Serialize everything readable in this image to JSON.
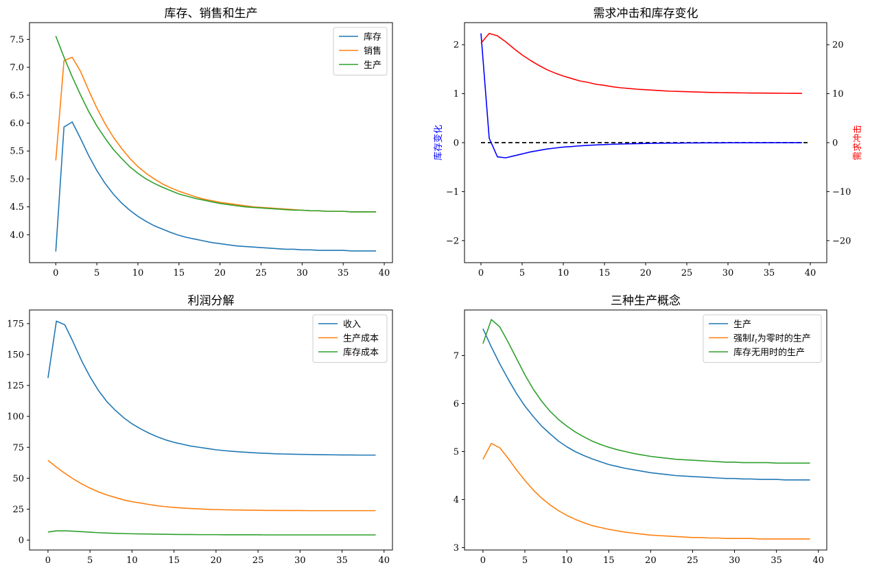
{
  "chart_data": [
    {
      "type": "line",
      "title": "库存、销售和生产",
      "xlabel": "",
      "ylabel": "",
      "x": [
        0,
        1,
        2,
        3,
        4,
        5,
        6,
        7,
        8,
        9,
        10,
        11,
        12,
        13,
        14,
        15,
        16,
        17,
        18,
        19,
        20,
        21,
        22,
        23,
        24,
        25,
        26,
        27,
        28,
        29,
        30,
        31,
        32,
        33,
        34,
        35,
        36,
        37,
        38,
        39
      ],
      "xlim": [
        -3.2,
        41
      ],
      "ylim": [
        3.5,
        7.8
      ],
      "xticks": [
        0,
        5,
        10,
        15,
        20,
        25,
        30,
        35,
        40
      ],
      "yticks": [
        4.0,
        4.5,
        5.0,
        5.5,
        6.0,
        6.5,
        7.0,
        7.5
      ],
      "ytick_labels": [
        "4.0",
        "4.5",
        "5.0",
        "5.5",
        "6.0",
        "6.5",
        "7.0",
        "7.5"
      ],
      "legend_position": "upper-right",
      "series": [
        {
          "name": "库存",
          "color": "#1f77b4",
          "values": [
            3.7,
            5.93,
            6.02,
            5.73,
            5.42,
            5.15,
            4.92,
            4.73,
            4.57,
            4.44,
            4.33,
            4.24,
            4.16,
            4.1,
            4.04,
            3.99,
            3.95,
            3.92,
            3.89,
            3.86,
            3.84,
            3.82,
            3.8,
            3.79,
            3.78,
            3.77,
            3.76,
            3.75,
            3.74,
            3.74,
            3.73,
            3.73,
            3.72,
            3.72,
            3.72,
            3.72,
            3.71,
            3.71,
            3.71,
            3.71
          ]
        },
        {
          "name": "销售",
          "color": "#ff7f0e",
          "values": [
            5.33,
            7.12,
            7.18,
            6.93,
            6.59,
            6.27,
            5.99,
            5.75,
            5.55,
            5.37,
            5.22,
            5.1,
            5,
            4.91,
            4.84,
            4.78,
            4.73,
            4.68,
            4.64,
            4.61,
            4.58,
            4.56,
            4.54,
            4.52,
            4.5,
            4.49,
            4.48,
            4.47,
            4.46,
            4.45,
            4.44,
            4.43,
            4.43,
            4.42,
            4.42,
            4.42,
            4.41,
            4.41,
            4.41,
            4.41
          ]
        },
        {
          "name": "生产",
          "color": "#2ca02c",
          "values": [
            7.56,
            7.18,
            6.83,
            6.51,
            6.21,
            5.95,
            5.73,
            5.53,
            5.37,
            5.22,
            5.1,
            5,
            4.92,
            4.85,
            4.79,
            4.73,
            4.69,
            4.65,
            4.62,
            4.59,
            4.56,
            4.54,
            4.52,
            4.5,
            4.49,
            4.48,
            4.47,
            4.46,
            4.45,
            4.44,
            4.44,
            4.43,
            4.43,
            4.42,
            4.42,
            4.42,
            4.41,
            4.41,
            4.41,
            4.41
          ]
        }
      ]
    },
    {
      "type": "line",
      "title": "需求冲击和库存变化",
      "xlabel": "",
      "ylabel": "库存变化",
      "ylabel_right": "需求冲击",
      "ylabel_color": "#0000ff",
      "ylabel_right_color": "#ff0000",
      "x": [
        0,
        1,
        2,
        3,
        4,
        5,
        6,
        7,
        8,
        9,
        10,
        11,
        12,
        13,
        14,
        15,
        16,
        17,
        18,
        19,
        20,
        21,
        22,
        23,
        24,
        25,
        26,
        27,
        28,
        29,
        30,
        31,
        32,
        33,
        34,
        35,
        36,
        37,
        38,
        39
      ],
      "xlim": [
        -2,
        42
      ],
      "ylim": [
        -2.45,
        2.45
      ],
      "ylim_right": [
        -24.5,
        24.5
      ],
      "xticks": [
        0,
        5,
        10,
        15,
        20,
        25,
        30,
        35,
        40
      ],
      "yticks": [
        -2,
        -1,
        0,
        1,
        2
      ],
      "ytick_labels": [
        "−2",
        "−1",
        "0",
        "1",
        "2"
      ],
      "yticks_right": [
        -20,
        -10,
        0,
        10,
        20
      ],
      "ytick_labels_right": [
        "−20",
        "−10",
        "0",
        "10",
        "20"
      ],
      "reference_line": {
        "y": 0,
        "style": "dashed",
        "color": "#000000",
        "x_range": [
          0,
          40
        ]
      },
      "series": [
        {
          "axis": "left",
          "color": "#0000ff",
          "values": [
            2.23,
            0.09,
            -0.29,
            -0.31,
            -0.27,
            -0.23,
            -0.19,
            -0.16,
            -0.13,
            -0.11,
            -0.09,
            -0.08,
            -0.065,
            -0.055,
            -0.046,
            -0.039,
            -0.033,
            -0.028,
            -0.024,
            -0.02,
            -0.017,
            -0.014,
            -0.012,
            -0.01,
            -0.009,
            -0.007,
            -0.006,
            -0.005,
            -0.004,
            -0.004,
            -0.003,
            -0.003,
            -0.002,
            -0.002,
            -0.002,
            -0.001,
            -0.001,
            -0.001,
            -0.001,
            -0.001
          ]
        },
        {
          "axis": "right",
          "color": "#ff0000",
          "values": [
            20.3,
            22.3,
            21.8,
            20.6,
            19.2,
            17.9,
            16.8,
            15.8,
            14.9,
            14.2,
            13.6,
            13.1,
            12.6,
            12.3,
            11.9,
            11.7,
            11.4,
            11.2,
            11.05,
            10.9,
            10.8,
            10.7,
            10.6,
            10.5,
            10.45,
            10.4,
            10.35,
            10.3,
            10.25,
            10.22,
            10.2,
            10.17,
            10.15,
            10.13,
            10.12,
            10.1,
            10.09,
            10.08,
            10.07,
            10.06
          ]
        }
      ]
    },
    {
      "type": "line",
      "title": "利润分解",
      "xlabel": "",
      "ylabel": "",
      "x": [
        0,
        1,
        2,
        3,
        4,
        5,
        6,
        7,
        8,
        9,
        10,
        11,
        12,
        13,
        14,
        15,
        16,
        17,
        18,
        19,
        20,
        21,
        22,
        23,
        24,
        25,
        26,
        27,
        28,
        29,
        30,
        31,
        32,
        33,
        34,
        35,
        36,
        37,
        38,
        39
      ],
      "xlim": [
        -2.2,
        41
      ],
      "ylim": [
        -8,
        186
      ],
      "xticks": [
        0,
        5,
        10,
        15,
        20,
        25,
        30,
        35,
        40
      ],
      "yticks": [
        0,
        25,
        50,
        75,
        100,
        125,
        150,
        175
      ],
      "ytick_labels": [
        "0",
        "25",
        "50",
        "75",
        "100",
        "125",
        "150",
        "175"
      ],
      "legend_position": "upper-right",
      "series": [
        {
          "name": "收入",
          "color": "#1f77b4",
          "values": [
            131,
            177,
            174,
            160,
            145,
            132,
            121,
            112,
            105,
            99,
            94,
            90,
            86.5,
            83.5,
            81,
            79,
            77.5,
            76,
            75,
            74,
            73,
            72.3,
            71.7,
            71.2,
            70.8,
            70.4,
            70.1,
            69.8,
            69.6,
            69.4,
            69.3,
            69.2,
            69.1,
            69,
            68.9,
            68.8,
            68.8,
            68.7,
            68.7,
            68.7
          ]
        },
        {
          "name": "生产成本",
          "color": "#ff7f0e",
          "values": [
            64.5,
            59,
            54,
            49.5,
            45.5,
            42,
            39,
            36.5,
            34.5,
            32.5,
            31,
            30,
            28.8,
            27.8,
            27,
            26.4,
            25.9,
            25.5,
            25.2,
            24.9,
            24.7,
            24.5,
            24.4,
            24.3,
            24.2,
            24.1,
            24,
            24,
            23.9,
            23.9,
            23.9,
            23.8,
            23.8,
            23.8,
            23.8,
            23.8,
            23.8,
            23.8,
            23.8,
            23.8
          ]
        },
        {
          "name": "库存成本",
          "color": "#2ca02c",
          "values": [
            6.5,
            7.5,
            7.5,
            7.2,
            6.8,
            6.4,
            6,
            5.7,
            5.5,
            5.3,
            5.1,
            5,
            4.9,
            4.8,
            4.7,
            4.6,
            4.5,
            4.5,
            4.4,
            4.4,
            4.4,
            4.3,
            4.3,
            4.3,
            4.3,
            4.3,
            4.2,
            4.2,
            4.2,
            4.2,
            4.2,
            4.2,
            4.2,
            4.2,
            4.2,
            4.2,
            4.2,
            4.2,
            4.2,
            4.2
          ]
        }
      ]
    },
    {
      "type": "line",
      "title": "三种生产概念",
      "xlabel": "",
      "ylabel": "",
      "x": [
        0,
        1,
        2,
        3,
        4,
        5,
        6,
        7,
        8,
        9,
        10,
        11,
        12,
        13,
        14,
        15,
        16,
        17,
        18,
        19,
        20,
        21,
        22,
        23,
        24,
        25,
        26,
        27,
        28,
        29,
        30,
        31,
        32,
        33,
        34,
        35,
        36,
        37,
        38,
        39
      ],
      "xlim": [
        -2.2,
        41
      ],
      "ylim": [
        2.95,
        7.95
      ],
      "xticks": [
        0,
        5,
        10,
        15,
        20,
        25,
        30,
        35,
        40
      ],
      "yticks": [
        3,
        4,
        5,
        6,
        7
      ],
      "ytick_labels": [
        "3",
        "4",
        "5",
        "6",
        "7"
      ],
      "legend_position": "upper-right",
      "series": [
        {
          "name": "生产",
          "color": "#1f77b4",
          "values": [
            7.56,
            7.18,
            6.83,
            6.51,
            6.21,
            5.95,
            5.73,
            5.53,
            5.37,
            5.22,
            5.1,
            5,
            4.92,
            4.85,
            4.79,
            4.73,
            4.69,
            4.65,
            4.62,
            4.59,
            4.56,
            4.54,
            4.52,
            4.5,
            4.49,
            4.48,
            4.47,
            4.46,
            4.45,
            4.44,
            4.44,
            4.43,
            4.43,
            4.42,
            4.42,
            4.42,
            4.41,
            4.41,
            4.41,
            4.41
          ]
        },
        {
          "name": "强制I_t为零时的生产",
          "legend_prefix": "强制",
          "legend_italic": "I",
          "legend_sub": "t",
          "legend_suffix": "为零时的生产",
          "color": "#ff7f0e",
          "values": [
            4.84,
            5.17,
            5.08,
            4.86,
            4.62,
            4.4,
            4.2,
            4.03,
            3.89,
            3.77,
            3.67,
            3.59,
            3.52,
            3.46,
            3.42,
            3.38,
            3.35,
            3.32,
            3.3,
            3.28,
            3.26,
            3.25,
            3.24,
            3.23,
            3.22,
            3.21,
            3.21,
            3.2,
            3.2,
            3.19,
            3.19,
            3.19,
            3.19,
            3.18,
            3.18,
            3.18,
            3.18,
            3.18,
            3.18,
            3.18
          ]
        },
        {
          "name": "库存无用时的生产",
          "color": "#2ca02c",
          "values": [
            7.25,
            7.75,
            7.6,
            7.28,
            6.94,
            6.6,
            6.3,
            6.05,
            5.84,
            5.67,
            5.53,
            5.41,
            5.31,
            5.22,
            5.15,
            5.09,
            5.04,
            5,
            4.96,
            4.93,
            4.9,
            4.88,
            4.86,
            4.84,
            4.83,
            4.82,
            4.81,
            4.8,
            4.79,
            4.78,
            4.78,
            4.77,
            4.77,
            4.77,
            4.77,
            4.76,
            4.76,
            4.76,
            4.76,
            4.76
          ]
        }
      ]
    }
  ]
}
